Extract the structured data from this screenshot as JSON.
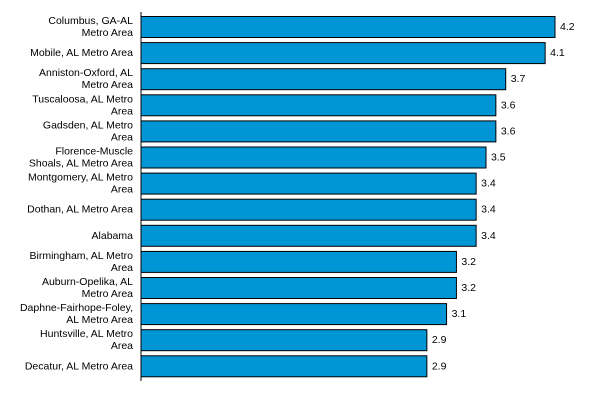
{
  "chart_data": {
    "type": "bar",
    "orientation": "horizontal",
    "title": "",
    "xlabel": "",
    "ylabel": "",
    "xlim": [
      0,
      4.2
    ],
    "grid": false,
    "bar_color": "#0096d6",
    "categories": [
      [
        "Columbus, GA-AL",
        "Metro Area"
      ],
      [
        "Mobile, AL Metro Area"
      ],
      [
        "Anniston-Oxford, AL",
        "Metro Area"
      ],
      [
        "Tuscaloosa, AL Metro",
        "Area"
      ],
      [
        "Gadsden, AL Metro",
        "Area"
      ],
      [
        "Florence-Muscle",
        "Shoals, AL Metro Area"
      ],
      [
        "Montgomery, AL Metro",
        "Area"
      ],
      [
        "Dothan, AL Metro Area"
      ],
      [
        "Alabama"
      ],
      [
        "Birmingham, AL Metro",
        "Area"
      ],
      [
        "Auburn-Opelika, AL",
        "Metro Area"
      ],
      [
        "Daphne-Fairhope-Foley,",
        "AL Metro Area"
      ],
      [
        "Huntsville, AL Metro",
        "Area"
      ],
      [
        "Decatur, AL Metro Area"
      ]
    ],
    "values": [
      4.2,
      4.1,
      3.7,
      3.6,
      3.6,
      3.5,
      3.4,
      3.4,
      3.4,
      3.2,
      3.2,
      3.1,
      2.9,
      2.9
    ],
    "value_labels": [
      "4.2",
      "4.1",
      "3.7",
      "3.6",
      "3.6",
      "3.5",
      "3.4",
      "3.4",
      "3.4",
      "3.2",
      "3.2",
      "3.1",
      "2.9",
      "2.9"
    ]
  }
}
